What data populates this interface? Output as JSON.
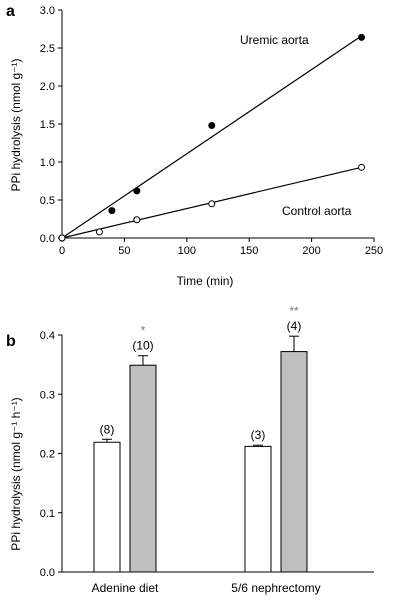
{
  "chart_data": [
    {
      "panel": "a",
      "type": "scatter",
      "xlabel": "Time (min)",
      "ylabel": "PPi hydrolysis (nmol g⁻¹)",
      "xlim": [
        0,
        250
      ],
      "ylim": [
        0,
        3.0
      ],
      "xticks": [
        "0",
        "50",
        "100",
        "150",
        "200",
        "250"
      ],
      "yticks": [
        "0.0",
        "0.5",
        "1.0",
        "1.5",
        "2.0",
        "2.5",
        "3.0"
      ],
      "series": [
        {
          "name": "Uremic aorta",
          "marker": "filled",
          "x": [
            0,
            40,
            60,
            120,
            240
          ],
          "y": [
            0,
            0.36,
            0.62,
            1.48,
            2.64
          ],
          "fit": [
            [
              0,
              0
            ],
            [
              240,
              2.66
            ]
          ]
        },
        {
          "name": "Control aorta",
          "marker": "open",
          "x": [
            0,
            30,
            60,
            120,
            240
          ],
          "y": [
            0,
            0.08,
            0.24,
            0.45,
            0.93
          ],
          "fit": [
            [
              0,
              0
            ],
            [
              240,
              0.93
            ]
          ]
        }
      ]
    },
    {
      "panel": "b",
      "type": "bar",
      "ylabel": "PPi hydrolysis (nmol g⁻¹ h⁻¹)",
      "ylim": [
        0,
        0.4
      ],
      "yticks": [
        "0.0",
        "0.1",
        "0.2",
        "0.3",
        "0.4"
      ],
      "categories": [
        "Adenine diet",
        "5/6 nephrectomy"
      ],
      "series": [
        {
          "fill": "#ffffff",
          "values": [
            0.219,
            0.212
          ],
          "errors": [
            0.005,
            0.002
          ],
          "n": [
            "(8)",
            "(3)"
          ],
          "sig": [
            "",
            ""
          ]
        },
        {
          "fill": "#c0c0c0",
          "values": [
            0.349,
            0.372
          ],
          "errors": [
            0.016,
            0.026
          ],
          "n": [
            "(10)",
            "(4)"
          ],
          "sig": [
            "*",
            "**"
          ]
        }
      ]
    }
  ]
}
